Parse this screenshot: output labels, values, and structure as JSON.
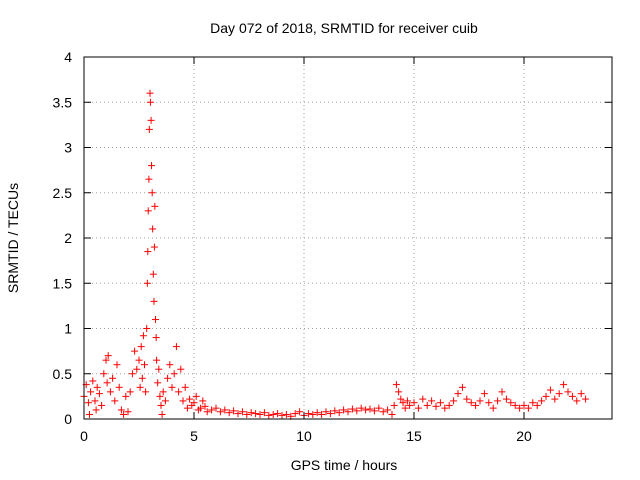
{
  "chart_data": {
    "type": "scatter",
    "title": "Day 072 of 2018, SRMTID for receiver cuib",
    "xlabel": "GPS time / hours",
    "ylabel": "SRMTID / TECUs",
    "xlim": [
      0,
      24
    ],
    "ylim": [
      0,
      4
    ],
    "xticks": [
      0,
      5,
      10,
      15,
      20
    ],
    "xtick_labels": [
      "0",
      "5",
      "10",
      "15",
      "20"
    ],
    "yticks": [
      0,
      0.5,
      1,
      1.5,
      2,
      2.5,
      3,
      3.5,
      4
    ],
    "ytick_labels": [
      "0",
      "0.5",
      "1",
      "1.5",
      "2",
      "2.5",
      "3",
      "3.5",
      "4"
    ],
    "grid": true,
    "marker": "plus",
    "color": "#ff0000",
    "series": [
      {
        "name": "SRMTID",
        "points": [
          [
            0.0,
            0.25
          ],
          [
            0.1,
            0.38
          ],
          [
            0.2,
            0.18
          ],
          [
            0.25,
            0.05
          ],
          [
            0.3,
            0.3
          ],
          [
            0.4,
            0.42
          ],
          [
            0.5,
            0.2
          ],
          [
            0.55,
            0.1
          ],
          [
            0.6,
            0.35
          ],
          [
            0.7,
            0.28
          ],
          [
            0.8,
            0.15
          ],
          [
            0.9,
            0.5
          ],
          [
            1.0,
            0.65
          ],
          [
            1.05,
            0.4
          ],
          [
            1.1,
            0.7
          ],
          [
            1.2,
            0.3
          ],
          [
            1.3,
            0.45
          ],
          [
            1.4,
            0.2
          ],
          [
            1.5,
            0.6
          ],
          [
            1.6,
            0.35
          ],
          [
            1.7,
            0.1
          ],
          [
            1.8,
            0.05
          ],
          [
            1.9,
            0.25
          ],
          [
            2.0,
            0.08
          ],
          [
            2.1,
            0.3
          ],
          [
            2.2,
            0.5
          ],
          [
            2.3,
            0.75
          ],
          [
            2.4,
            0.55
          ],
          [
            2.5,
            0.65
          ],
          [
            2.55,
            0.35
          ],
          [
            2.6,
            0.8
          ],
          [
            2.65,
            0.45
          ],
          [
            2.7,
            0.92
          ],
          [
            2.75,
            0.6
          ],
          [
            2.8,
            0.3
          ],
          [
            2.85,
            1.0
          ],
          [
            2.88,
            1.5
          ],
          [
            2.9,
            1.85
          ],
          [
            2.92,
            2.3
          ],
          [
            2.95,
            2.65
          ],
          [
            2.97,
            3.2
          ],
          [
            3.0,
            3.6
          ],
          [
            3.02,
            3.5
          ],
          [
            3.05,
            3.3
          ],
          [
            3.07,
            2.8
          ],
          [
            3.1,
            2.5
          ],
          [
            3.12,
            2.1
          ],
          [
            3.15,
            1.6
          ],
          [
            3.18,
            1.3
          ],
          [
            3.2,
            1.9
          ],
          [
            3.22,
            2.35
          ],
          [
            3.25,
            1.1
          ],
          [
            3.28,
            0.9
          ],
          [
            3.3,
            0.65
          ],
          [
            3.35,
            0.4
          ],
          [
            3.4,
            0.55
          ],
          [
            3.45,
            0.25
          ],
          [
            3.5,
            0.15
          ],
          [
            3.55,
            0.05
          ],
          [
            3.6,
            0.3
          ],
          [
            3.7,
            0.2
          ],
          [
            3.8,
            0.45
          ],
          [
            3.9,
            0.6
          ],
          [
            4.0,
            0.35
          ],
          [
            4.1,
            0.5
          ],
          [
            4.2,
            0.8
          ],
          [
            4.3,
            0.3
          ],
          [
            4.4,
            0.55
          ],
          [
            4.5,
            0.2
          ],
          [
            4.6,
            0.35
          ],
          [
            4.7,
            0.12
          ],
          [
            4.8,
            0.22
          ],
          [
            4.9,
            0.15
          ],
          [
            5.0,
            0.18
          ],
          [
            5.1,
            0.25
          ],
          [
            5.2,
            0.1
          ],
          [
            5.3,
            0.12
          ],
          [
            5.4,
            0.2
          ],
          [
            5.5,
            0.14
          ],
          [
            5.6,
            0.08
          ],
          [
            5.8,
            0.1
          ],
          [
            6.0,
            0.12
          ],
          [
            6.2,
            0.08
          ],
          [
            6.4,
            0.1
          ],
          [
            6.6,
            0.07
          ],
          [
            6.8,
            0.09
          ],
          [
            7.0,
            0.06
          ],
          [
            7.2,
            0.08
          ],
          [
            7.4,
            0.05
          ],
          [
            7.6,
            0.07
          ],
          [
            7.8,
            0.06
          ],
          [
            8.0,
            0.05
          ],
          [
            8.2,
            0.07
          ],
          [
            8.4,
            0.04
          ],
          [
            8.6,
            0.05
          ],
          [
            8.8,
            0.06
          ],
          [
            9.0,
            0.04
          ],
          [
            9.2,
            0.05
          ],
          [
            9.4,
            0.03
          ],
          [
            9.6,
            0.06
          ],
          [
            9.8,
            0.08
          ],
          [
            10.0,
            0.04
          ],
          [
            10.2,
            0.06
          ],
          [
            10.4,
            0.05
          ],
          [
            10.6,
            0.07
          ],
          [
            10.8,
            0.05
          ],
          [
            11.0,
            0.08
          ],
          [
            11.2,
            0.06
          ],
          [
            11.4,
            0.09
          ],
          [
            11.6,
            0.07
          ],
          [
            11.8,
            0.1
          ],
          [
            12.0,
            0.08
          ],
          [
            12.2,
            0.11
          ],
          [
            12.4,
            0.09
          ],
          [
            12.6,
            0.12
          ],
          [
            12.8,
            0.1
          ],
          [
            13.0,
            0.11
          ],
          [
            13.2,
            0.09
          ],
          [
            13.4,
            0.12
          ],
          [
            13.6,
            0.08
          ],
          [
            13.8,
            0.1
          ],
          [
            14.0,
            0.05
          ],
          [
            14.1,
            0.15
          ],
          [
            14.2,
            0.38
          ],
          [
            14.3,
            0.3
          ],
          [
            14.4,
            0.22
          ],
          [
            14.5,
            0.18
          ],
          [
            14.6,
            0.12
          ],
          [
            14.7,
            0.2
          ],
          [
            14.8,
            0.15
          ],
          [
            15.0,
            0.18
          ],
          [
            15.2,
            0.12
          ],
          [
            15.4,
            0.22
          ],
          [
            15.6,
            0.15
          ],
          [
            15.8,
            0.2
          ],
          [
            16.0,
            0.14
          ],
          [
            16.2,
            0.18
          ],
          [
            16.4,
            0.12
          ],
          [
            16.6,
            0.15
          ],
          [
            16.8,
            0.2
          ],
          [
            17.0,
            0.28
          ],
          [
            17.2,
            0.35
          ],
          [
            17.4,
            0.22
          ],
          [
            17.6,
            0.18
          ],
          [
            17.8,
            0.15
          ],
          [
            18.0,
            0.2
          ],
          [
            18.2,
            0.28
          ],
          [
            18.4,
            0.18
          ],
          [
            18.6,
            0.12
          ],
          [
            18.8,
            0.2
          ],
          [
            19.0,
            0.3
          ],
          [
            19.2,
            0.22
          ],
          [
            19.4,
            0.18
          ],
          [
            19.6,
            0.15
          ],
          [
            19.8,
            0.12
          ],
          [
            20.0,
            0.15
          ],
          [
            20.2,
            0.12
          ],
          [
            20.4,
            0.18
          ],
          [
            20.6,
            0.15
          ],
          [
            20.8,
            0.2
          ],
          [
            21.0,
            0.25
          ],
          [
            21.2,
            0.32
          ],
          [
            21.4,
            0.22
          ],
          [
            21.6,
            0.28
          ],
          [
            21.8,
            0.38
          ],
          [
            22.0,
            0.3
          ],
          [
            22.2,
            0.25
          ],
          [
            22.4,
            0.2
          ],
          [
            22.6,
            0.28
          ],
          [
            22.8,
            0.22
          ]
        ]
      }
    ]
  }
}
